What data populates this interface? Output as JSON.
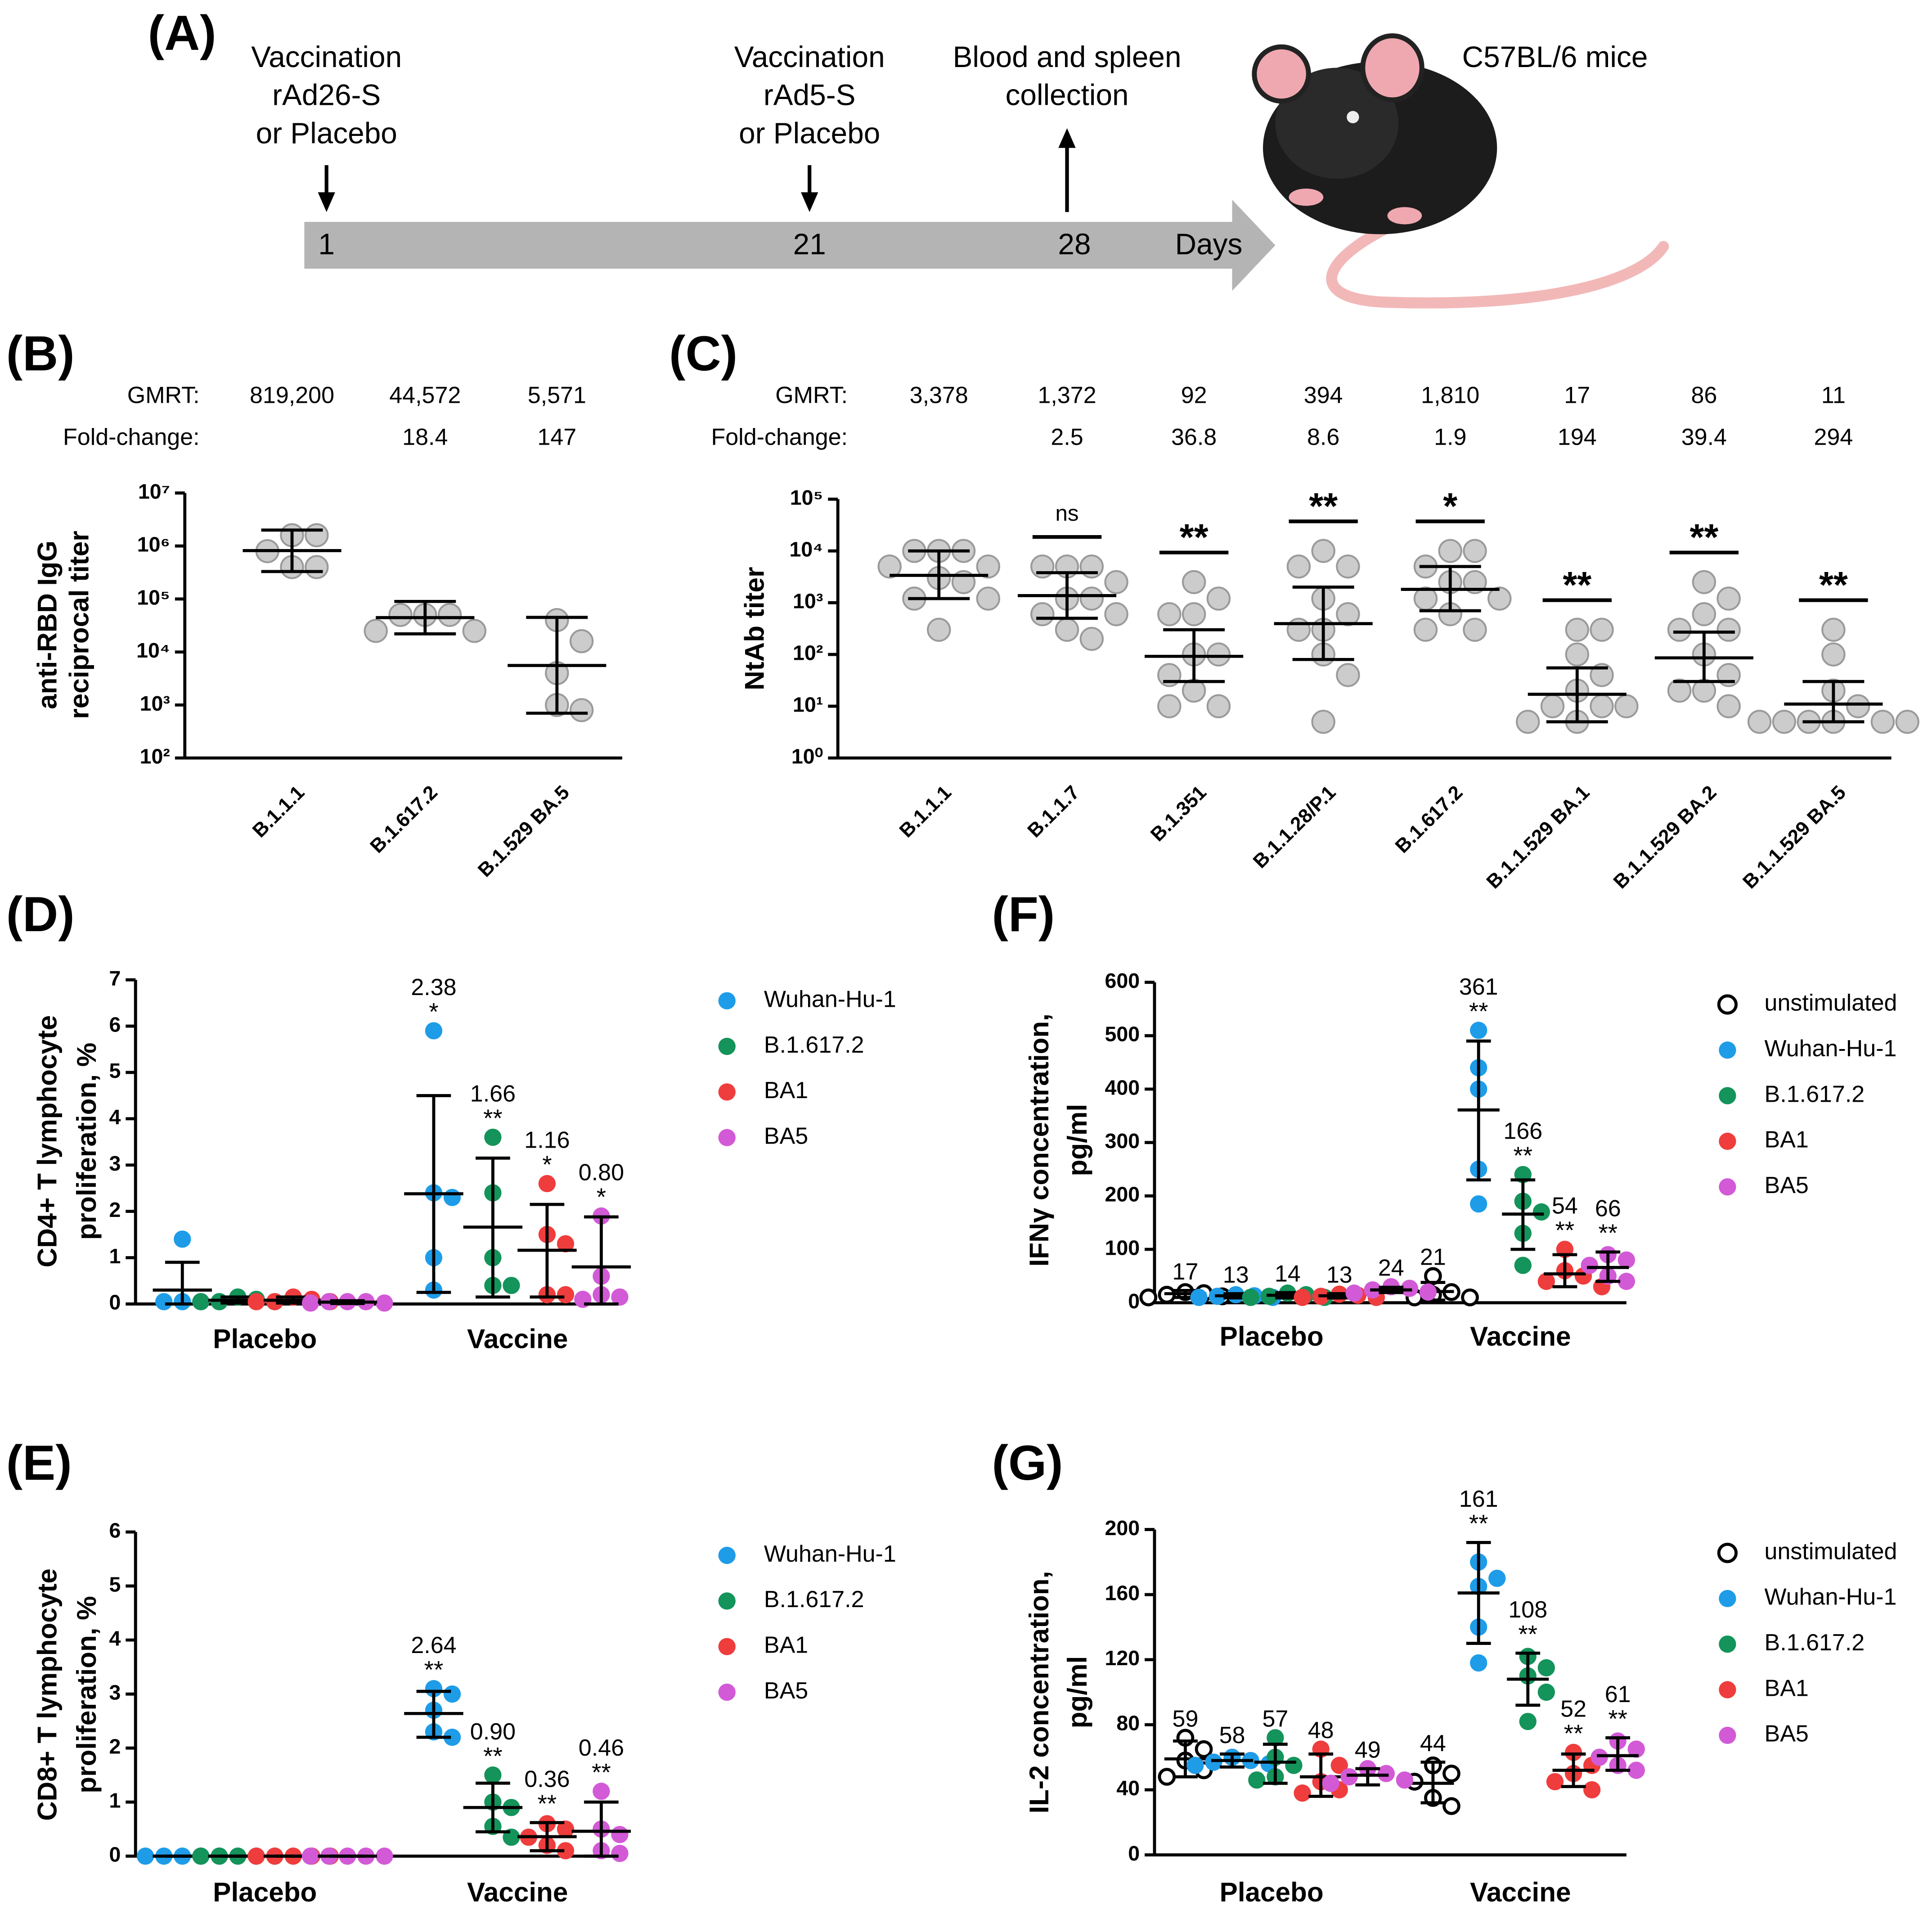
{
  "figure_a": {
    "label": "(A)",
    "events": [
      {
        "lines": [
          "Vaccination",
          "rAd26-S",
          "or Placebo"
        ],
        "day": 1
      },
      {
        "lines": [
          "Vaccination",
          "rAd5-S",
          "or Placebo"
        ],
        "day": 21
      },
      {
        "lines": [
          "Blood and spleen",
          "collection"
        ],
        "day": 28
      }
    ],
    "axis_label": "Days",
    "animal": "C57BL/6 mice"
  },
  "chart_data": [
    {
      "panel": "(B)",
      "type": "dot",
      "log_scale": true,
      "y_label": [
        "anti-RBD IgG",
        "reciprocal titer"
      ],
      "categories": [
        "B.1.1.1",
        "B.1.617.2",
        "B.1.529 BA.5"
      ],
      "ylim": [
        100,
        10000000
      ],
      "yticks": [
        {
          "value": 100,
          "label": "10²"
        },
        {
          "value": 1000,
          "label": "10³"
        },
        {
          "value": 10000,
          "label": "10⁴"
        },
        {
          "value": 100000,
          "label": "10⁵"
        },
        {
          "value": 1000000,
          "label": "10⁶"
        },
        {
          "value": 10000000,
          "label": "10⁷"
        }
      ],
      "color": "#cccccc",
      "points": [
        [
          1600000,
          1600000,
          800000,
          400000,
          400000
        ],
        [
          50000,
          50000,
          50000,
          25000,
          25000
        ],
        [
          40000,
          16000,
          4000,
          1000,
          800
        ]
      ],
      "values": [
        819200,
        44572,
        5571
      ],
      "value_labels": [
        "819,200",
        "44,572",
        "5,571"
      ],
      "err_low": [
        330000,
        22000,
        700
      ],
      "err_high": [
        2000000,
        90000,
        45000
      ],
      "gmrt_label": "GMRT:",
      "fold_change_label": "Fold-change:",
      "fold_change": [
        null,
        18.4,
        147
      ]
    },
    {
      "panel": "(C)",
      "type": "dot",
      "log_scale": true,
      "y_label": [
        "NtAb titer"
      ],
      "categories": [
        "B.1.1.1",
        "B.1.1.7",
        "B.1.351",
        "B.1.1.28/P.1",
        "B.1.617.2",
        "B.1.1.529 BA.1",
        "B.1.1.529 BA.2",
        "B.1.1.529 BA.5"
      ],
      "ylim": [
        1,
        100000
      ],
      "yticks": [
        {
          "value": 1,
          "label": "10⁰"
        },
        {
          "value": 10,
          "label": "10¹"
        },
        {
          "value": 100,
          "label": "10²"
        },
        {
          "value": 1000,
          "label": "10³"
        },
        {
          "value": 10000,
          "label": "10⁴"
        },
        {
          "value": 100000,
          "label": "10⁵"
        }
      ],
      "color": "#cccccc",
      "points": [
        [
          10000,
          10000,
          10000,
          5000,
          5000,
          3000,
          2500,
          1200,
          1200,
          300
        ],
        [
          5000,
          5000,
          5000,
          2500,
          1200,
          1200,
          600,
          600,
          300,
          200
        ],
        [
          2500,
          1200,
          600,
          600,
          100,
          100,
          40,
          20,
          10,
          10
        ],
        [
          10000,
          5000,
          5000,
          1200,
          600,
          300,
          300,
          100,
          40,
          5
        ],
        [
          10000,
          10000,
          5000,
          2500,
          2500,
          1200,
          1200,
          600,
          300,
          300
        ],
        [
          300,
          300,
          100,
          40,
          20,
          10,
          10,
          10,
          5,
          5
        ],
        [
          2500,
          1200,
          600,
          300,
          300,
          100,
          40,
          20,
          20,
          10
        ],
        [
          300,
          100,
          20,
          10,
          5,
          5,
          5,
          5,
          5,
          5
        ]
      ],
      "values": [
        3378,
        1372,
        92,
        394,
        1810,
        17,
        86,
        11
      ],
      "value_labels": [
        "3,378",
        "1,372",
        "92",
        "394",
        "1,810",
        "17",
        "86",
        "11"
      ],
      "err_low": [
        1200,
        500,
        30,
        80,
        700,
        5,
        30,
        5
      ],
      "err_high": [
        10000,
        3800,
        300,
        2000,
        5000,
        55,
        270,
        30
      ],
      "gmrt_label": "GMRT:",
      "fold_change_label": "Fold-change:",
      "fold_change": [
        null,
        2.5,
        36.8,
        8.6,
        1.9,
        194,
        39.4,
        294
      ],
      "significance": [
        null,
        "ns",
        "**",
        "**",
        "*",
        "**",
        "**",
        "**"
      ]
    },
    {
      "panel": "(D)",
      "type": "grouped_dot",
      "y_label": [
        "CD4+ T lymphocyte",
        "proliferation, %"
      ],
      "categories": [
        "Placebo",
        "Vaccine"
      ],
      "ylim": [
        0,
        7
      ],
      "yticks": [
        0,
        1,
        2,
        3,
        4,
        5,
        6,
        7
      ],
      "legend": "right",
      "series": [
        {
          "name": "Wuhan-Hu-1",
          "color": "#1e9ce8",
          "marker": "filled",
          "points": [
            [
              1.4,
              0.05,
              0.05,
              0.05,
              0.05
            ],
            [
              5.9,
              2.4,
              2.3,
              1.0,
              0.3
            ]
          ],
          "values": [
            0.3,
            2.38
          ],
          "value_labels": [
            null,
            "2.38"
          ],
          "err_low": [
            0,
            0.25
          ],
          "err_high": [
            0.9,
            4.5
          ],
          "significance": [
            null,
            "*"
          ]
        },
        {
          "name": "B.1.617.2",
          "color": "#14935a",
          "marker": "filled",
          "points": [
            [
              0.15,
              0.1,
              0.05,
              0.05,
              0.05
            ],
            [
              3.6,
              2.4,
              1.0,
              0.4,
              0.4
            ]
          ],
          "values": [
            0.08,
            1.66
          ],
          "value_labels": [
            null,
            "1.66"
          ],
          "err_low": [
            0.02,
            0.15
          ],
          "err_high": [
            0.15,
            3.15
          ],
          "significance": [
            null,
            "**"
          ]
        },
        {
          "name": "BA1",
          "color": "#ef3d3d",
          "marker": "filled",
          "points": [
            [
              0.15,
              0.1,
              0.05,
              0.05,
              0.05
            ],
            [
              2.6,
              1.5,
              1.3,
              0.2,
              0.2
            ]
          ],
          "values": [
            0.08,
            1.16
          ],
          "value_labels": [
            null,
            "1.16"
          ],
          "err_low": [
            0.02,
            0.15
          ],
          "err_high": [
            0.15,
            2.15
          ],
          "significance": [
            null,
            "*"
          ]
        },
        {
          "name": "BA5",
          "color": "#d25ad6",
          "marker": "filled",
          "points": [
            [
              0.05,
              0.05,
              0.05,
              0.02,
              0.02
            ],
            [
              1.9,
              0.6,
              0.2,
              0.15,
              0.1
            ]
          ],
          "values": [
            0.04,
            0.8
          ],
          "value_labels": [
            null,
            "0.80"
          ],
          "err_low": [
            0.01,
            0
          ],
          "err_high": [
            0.07,
            1.88
          ],
          "significance": [
            null,
            "*"
          ]
        }
      ]
    },
    {
      "panel": "(E)",
      "type": "grouped_dot",
      "y_label": [
        "CD8+ T lymphocyte",
        "proliferation, %"
      ],
      "categories": [
        "Placebo",
        "Vaccine"
      ],
      "ylim": [
        0,
        6
      ],
      "yticks": [
        0,
        1,
        2,
        3,
        4,
        5,
        6
      ],
      "legend": "right",
      "series": [
        {
          "name": "Wuhan-Hu-1",
          "color": "#1e9ce8",
          "marker": "filled",
          "points": [
            [
              0,
              0,
              0,
              0,
              0
            ],
            [
              3.1,
              3.0,
              2.7,
              2.3,
              2.2
            ]
          ],
          "values": [
            0,
            2.64
          ],
          "value_labels": [
            null,
            "2.64"
          ],
          "err_low": [
            0,
            2.2
          ],
          "err_high": [
            0,
            3.05
          ],
          "significance": [
            null,
            "**"
          ]
        },
        {
          "name": "B.1.617.2",
          "color": "#14935a",
          "marker": "filled",
          "points": [
            [
              0,
              0,
              0,
              0,
              0
            ],
            [
              1.5,
              1.0,
              0.9,
              0.55,
              0.35
            ]
          ],
          "values": [
            0,
            0.9
          ],
          "value_labels": [
            null,
            "0.90"
          ],
          "err_low": [
            0,
            0.45
          ],
          "err_high": [
            0,
            1.35
          ],
          "significance": [
            null,
            "**"
          ]
        },
        {
          "name": "BA1",
          "color": "#ef3d3d",
          "marker": "filled",
          "points": [
            [
              0,
              0,
              0,
              0,
              0
            ],
            [
              0.6,
              0.5,
              0.35,
              0.2,
              0.1
            ]
          ],
          "values": [
            0,
            0.36
          ],
          "value_labels": [
            null,
            "0.36"
          ],
          "err_low": [
            0,
            0.1
          ],
          "err_high": [
            0,
            0.62
          ],
          "significance": [
            null,
            "**"
          ]
        },
        {
          "name": "BA5",
          "color": "#d25ad6",
          "marker": "filled",
          "points": [
            [
              0,
              0,
              0,
              0,
              0
            ],
            [
              1.2,
              0.5,
              0.4,
              0.1,
              0.05
            ]
          ],
          "values": [
            0,
            0.46
          ],
          "value_labels": [
            null,
            "0.46"
          ],
          "err_low": [
            0,
            0
          ],
          "err_high": [
            0,
            1.0
          ],
          "significance": [
            null,
            "**"
          ]
        }
      ]
    },
    {
      "panel": "(F)",
      "type": "grouped_dot",
      "y_label": [
        "IFNγ concentration,",
        "pg/ml"
      ],
      "categories": [
        "Placebo",
        "Vaccine"
      ],
      "ylim": [
        0,
        600
      ],
      "yticks": [
        0,
        100,
        200,
        300,
        400,
        500,
        600
      ],
      "legend": "right",
      "series": [
        {
          "name": "unstimulated",
          "color": "#000000",
          "marker": "open",
          "points": [
            [
              20,
              18,
              15,
              12,
              10
            ],
            [
              50,
              20,
              15,
              10,
              10
            ]
          ],
          "values": [
            17,
            21
          ],
          "err_low": [
            10,
            5
          ],
          "err_high": [
            23,
            38
          ],
          "significance": [
            null,
            null
          ]
        },
        {
          "name": "Wuhan-Hu-1",
          "color": "#1e9ce8",
          "marker": "filled",
          "points": [
            [
              15,
              13,
              12,
              10,
              10
            ],
            [
              510,
              440,
              400,
              250,
              185
            ]
          ],
          "values": [
            13,
            361
          ],
          "err_low": [
            9,
            230
          ],
          "err_high": [
            17,
            490
          ],
          "significance": [
            null,
            "**"
          ]
        },
        {
          "name": "B.1.617.2",
          "color": "#14935a",
          "marker": "filled",
          "points": [
            [
              18,
              15,
              12,
              10,
              10
            ],
            [
              240,
              190,
              170,
              130,
              70
            ]
          ],
          "values": [
            14,
            166
          ],
          "err_low": [
            9,
            100
          ],
          "err_high": [
            19,
            230
          ],
          "significance": [
            null,
            "**"
          ]
        },
        {
          "name": "BA1",
          "color": "#ef3d3d",
          "marker": "filled",
          "points": [
            [
              16,
              14,
              12,
              10,
              10
            ],
            [
              100,
              60,
              50,
              40,
              30
            ]
          ],
          "values": [
            13,
            54
          ],
          "err_low": [
            9,
            30
          ],
          "err_high": [
            17,
            90
          ],
          "significance": [
            null,
            "**"
          ]
        },
        {
          "name": "BA5",
          "color": "#d25ad6",
          "marker": "filled",
          "points": [
            [
              30,
              27,
              24,
              20,
              18
            ],
            [
              90,
              80,
              70,
              50,
              40
            ]
          ],
          "values": [
            24,
            66
          ],
          "err_low": [
            19,
            40
          ],
          "err_high": [
            29,
            95
          ],
          "significance": [
            null,
            "**"
          ]
        }
      ]
    },
    {
      "panel": "(G)",
      "type": "grouped_dot",
      "y_label": [
        "IL-2 concentration,",
        "pg/ml"
      ],
      "categories": [
        "Placebo",
        "Vaccine"
      ],
      "ylim": [
        0,
        200
      ],
      "yticks": [
        0,
        40,
        80,
        120,
        160,
        200
      ],
      "legend": "right",
      "series": [
        {
          "name": "unstimulated",
          "color": "#000000",
          "marker": "open",
          "points": [
            [
              72,
              65,
              58,
              52,
              48
            ],
            [
              55,
              50,
              45,
              35,
              30
            ]
          ],
          "values": [
            59,
            44
          ],
          "err_low": [
            48,
            32
          ],
          "err_high": [
            70,
            57
          ],
          "significance": [
            null,
            null
          ]
        },
        {
          "name": "Wuhan-Hu-1",
          "color": "#1e9ce8",
          "marker": "filled",
          "points": [
            [
              60,
              58,
              57,
              56,
              55
            ],
            [
              180,
              170,
              165,
              140,
              118
            ]
          ],
          "values": [
            58,
            161
          ],
          "err_low": [
            54,
            130
          ],
          "err_high": [
            62,
            192
          ],
          "significance": [
            null,
            "**"
          ]
        },
        {
          "name": "B.1.617.2",
          "color": "#14935a",
          "marker": "filled",
          "points": [
            [
              72,
              60,
              55,
              48,
              46
            ],
            [
              122,
              115,
              110,
              100,
              82
            ]
          ],
          "values": [
            57,
            108
          ],
          "err_low": [
            44,
            92
          ],
          "err_high": [
            68,
            124
          ],
          "significance": [
            null,
            "**"
          ]
        },
        {
          "name": "BA1",
          "color": "#ef3d3d",
          "marker": "filled",
          "points": [
            [
              65,
              55,
              45,
              40,
              38
            ],
            [
              63,
              55,
              50,
              45,
              40
            ]
          ],
          "values": [
            48,
            52
          ],
          "err_low": [
            36,
            42
          ],
          "err_high": [
            62,
            62
          ],
          "significance": [
            null,
            "**"
          ]
        },
        {
          "name": "BA5",
          "color": "#d25ad6",
          "marker": "filled",
          "points": [
            [
              53,
              50,
              48,
              46,
              44
            ],
            [
              70,
              65,
              60,
              55,
              52
            ]
          ],
          "values": [
            49,
            61
          ],
          "err_low": [
            43,
            52
          ],
          "err_high": [
            53,
            72
          ],
          "significance": [
            null,
            "**"
          ]
        }
      ]
    }
  ]
}
